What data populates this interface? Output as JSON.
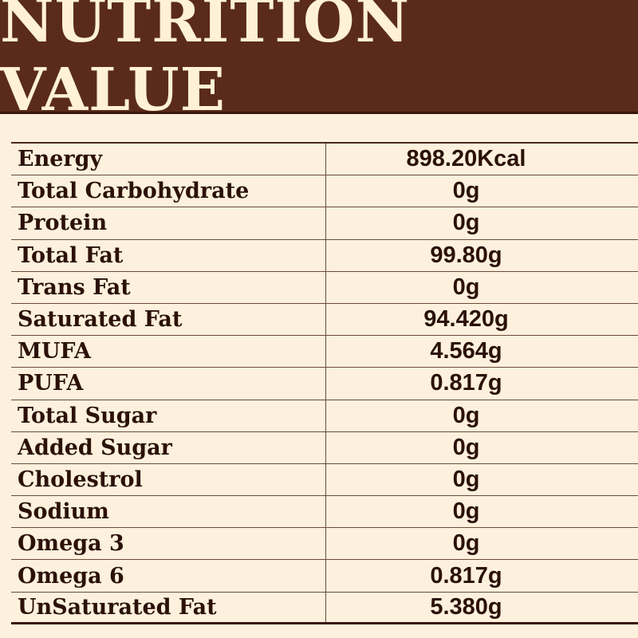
{
  "title": "NUTRITION VALUE",
  "rows": [
    {
      "label": "Energy",
      "value": "898.20Kcal"
    },
    {
      "label": "Total Carbohydrate",
      "value": "0g"
    },
    {
      "label": "Protein",
      "value": "0g"
    },
    {
      "label": "Total Fat",
      "value": "99.80g"
    },
    {
      "label": "Trans Fat",
      "value": "0g"
    },
    {
      "label": "Saturated Fat",
      "value": "94.420g"
    },
    {
      "label": "MUFA",
      "value": "4.564g"
    },
    {
      "label": "PUFA",
      "value": "0.817g"
    },
    {
      "label": "Total Sugar",
      "value": "0g"
    },
    {
      "label": "Added Sugar",
      "value": "0g"
    },
    {
      "label": "Cholestrol",
      "value": "0g"
    },
    {
      "label": "Sodium",
      "value": "0g"
    },
    {
      "label": "Omega 3",
      "value": "0g"
    },
    {
      "label": "Omega 6",
      "value": "0.817g"
    },
    {
      "label": "UnSaturated Fat",
      "value": "5.380g"
    }
  ],
  "colors": {
    "header_bg": "#5a2b1a",
    "header_text": "#fff1d6",
    "page_bg": "#fdf1dd",
    "text": "#2b1108"
  }
}
